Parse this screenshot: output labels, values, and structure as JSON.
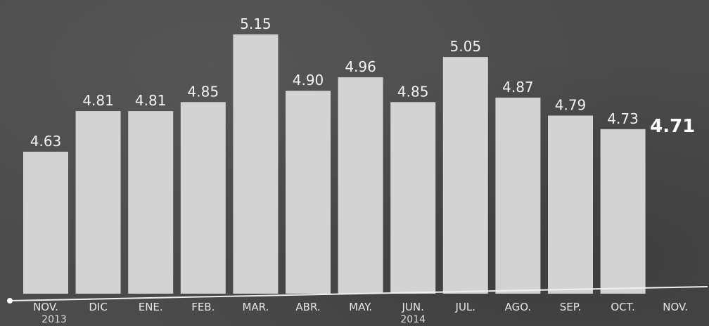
{
  "chart_data": {
    "type": "bar",
    "title": "",
    "xlabel": "",
    "ylabel": "",
    "categories": [
      "NOV.",
      "DIC",
      "ENE.",
      "FEB.",
      "MAR.",
      "ABR.",
      "MAY.",
      "JUN.",
      "JUL.",
      "AGO.",
      "SEP.",
      "OCT.",
      "NOV."
    ],
    "values": [
      4.63,
      4.81,
      4.81,
      4.85,
      5.15,
      4.9,
      4.96,
      4.85,
      5.05,
      4.87,
      4.79,
      4.73,
      4.71
    ],
    "value_labels": [
      "4.63",
      "4.81",
      "4.81",
      "4.85",
      "5.15",
      "4.90",
      "4.96",
      "4.85",
      "5.05",
      "4.87",
      "4.79",
      "4.73",
      "4.71"
    ],
    "year_labels": [
      {
        "text": "2013",
        "category_index": 0
      },
      {
        "text": "2014",
        "category_index": 7
      }
    ],
    "ylim": [
      4.0,
      5.2
    ],
    "grid": false,
    "highlight_last": true,
    "colors": {
      "background": "#4b4b4b",
      "bar": "#d3d3d3",
      "text": "#f2f2f2"
    }
  }
}
